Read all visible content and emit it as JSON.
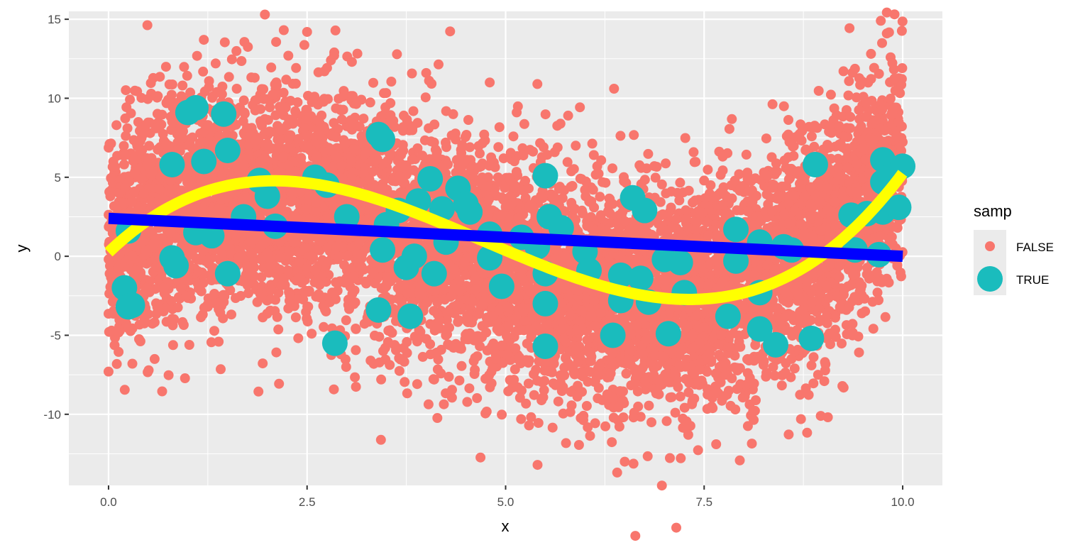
{
  "chart_data": {
    "type": "scatter",
    "xlabel": "x",
    "ylabel": "y",
    "xlim": [
      -0.5,
      10.5
    ],
    "ylim": [
      -14.5,
      15.5
    ],
    "x_ticks": [
      0,
      2.5,
      5,
      7.5,
      10
    ],
    "x_tick_labels": [
      "0.0",
      "2.5",
      "5.0",
      "7.5",
      "10.0"
    ],
    "y_ticks": [
      -10,
      -5,
      0,
      5,
      10,
      15
    ],
    "y_tick_labels": [
      "-10",
      "-5",
      "0",
      "5",
      "10",
      "15"
    ],
    "grid": true,
    "legend": {
      "title": "samp",
      "position": "right",
      "entries": [
        {
          "label": "FALSE",
          "color": "#F8766D"
        },
        {
          "label": "TRUE",
          "color": "#00BFC4"
        }
      ]
    },
    "colors": {
      "false_points": "#F8766D",
      "true_points": "#1ABCBD",
      "linear_fit": "#0000FF",
      "curve_fit": "#FFFF00",
      "panel_background": "#EBEBEB",
      "gridline": "#FFFFFF"
    },
    "series": [
      {
        "name": "FALSE",
        "kind": "points",
        "n_approx": 8000,
        "x_range": [
          0,
          10
        ],
        "mean_curve_coefficients": [
          0.8,
          3.6,
          -1.25,
          0.095
        ],
        "noise_sd": 3.6,
        "examples": [
          [
            0.0,
            -7.3
          ],
          [
            0.1,
            8.3
          ],
          [
            1.2,
            13.7
          ],
          [
            2.5,
            14.2
          ],
          [
            2.8,
            12.4
          ],
          [
            4.0,
            11.6
          ],
          [
            4.8,
            11.0
          ],
          [
            5.4,
            10.9
          ],
          [
            6.5,
            -13.0
          ],
          [
            7.3,
            -11.3
          ],
          [
            9.8,
            14.1
          ],
          [
            9.9,
            9.4
          ],
          [
            0.3,
            -6.8
          ],
          [
            4.1,
            -7.8
          ],
          [
            3.3,
            -6.6
          ]
        ]
      },
      {
        "name": "TRUE",
        "kind": "points",
        "points": [
          [
            0.2,
            -2.0
          ],
          [
            0.25,
            -3.2
          ],
          [
            0.3,
            -3.1
          ],
          [
            0.25,
            1.6
          ],
          [
            0.8,
            5.8
          ],
          [
            0.8,
            -0.1
          ],
          [
            0.85,
            -0.6
          ],
          [
            1.0,
            9.1
          ],
          [
            1.1,
            9.4
          ],
          [
            1.1,
            1.5
          ],
          [
            1.2,
            6.0
          ],
          [
            1.3,
            1.3
          ],
          [
            1.45,
            9.0
          ],
          [
            1.5,
            6.7
          ],
          [
            1.5,
            -1.1
          ],
          [
            1.7,
            2.5
          ],
          [
            1.9,
            4.8
          ],
          [
            2.0,
            3.8
          ],
          [
            2.1,
            1.9
          ],
          [
            2.6,
            5.0
          ],
          [
            2.75,
            4.5
          ],
          [
            2.85,
            -5.5
          ],
          [
            3.0,
            2.5
          ],
          [
            3.4,
            7.7
          ],
          [
            3.45,
            7.4
          ],
          [
            3.45,
            0.4
          ],
          [
            3.5,
            2.0
          ],
          [
            3.4,
            -3.4
          ],
          [
            3.65,
            2.9
          ],
          [
            3.75,
            -0.7
          ],
          [
            3.8,
            -3.8
          ],
          [
            3.85,
            0.0
          ],
          [
            3.9,
            3.5
          ],
          [
            4.05,
            4.9
          ],
          [
            4.1,
            -1.1
          ],
          [
            4.2,
            3.0
          ],
          [
            4.25,
            0.9
          ],
          [
            4.4,
            4.3
          ],
          [
            4.5,
            3.3
          ],
          [
            4.55,
            2.8
          ],
          [
            4.8,
            1.4
          ],
          [
            4.8,
            -0.1
          ],
          [
            4.95,
            -1.9
          ],
          [
            5.2,
            1.2
          ],
          [
            5.4,
            0.6
          ],
          [
            5.5,
            -1.1
          ],
          [
            5.5,
            -3.0
          ],
          [
            5.5,
            -5.7
          ],
          [
            5.5,
            5.1
          ],
          [
            5.55,
            2.5
          ],
          [
            5.7,
            1.8
          ],
          [
            6.0,
            0.3
          ],
          [
            6.05,
            -0.9
          ],
          [
            6.35,
            -5.0
          ],
          [
            6.45,
            -1.2
          ],
          [
            6.45,
            -2.8
          ],
          [
            6.6,
            3.7
          ],
          [
            6.7,
            -1.4
          ],
          [
            6.75,
            2.9
          ],
          [
            6.8,
            -2.9
          ],
          [
            7.0,
            -0.2
          ],
          [
            7.05,
            -4.9
          ],
          [
            7.2,
            -0.4
          ],
          [
            7.25,
            -2.3
          ],
          [
            7.8,
            -3.8
          ],
          [
            7.9,
            1.7
          ],
          [
            7.9,
            -0.3
          ],
          [
            8.2,
            0.9
          ],
          [
            8.2,
            -2.3
          ],
          [
            8.2,
            -4.6
          ],
          [
            8.4,
            -5.6
          ],
          [
            8.5,
            0.6
          ],
          [
            8.6,
            0.4
          ],
          [
            8.85,
            -5.2
          ],
          [
            8.9,
            5.8
          ],
          [
            9.35,
            2.6
          ],
          [
            9.4,
            0.4
          ],
          [
            9.55,
            2.7
          ],
          [
            9.7,
            0.1
          ],
          [
            9.75,
            6.1
          ],
          [
            9.75,
            2.8
          ],
          [
            9.75,
            4.7
          ],
          [
            9.85,
            5.1
          ],
          [
            9.95,
            3.1
          ],
          [
            10.0,
            5.7
          ]
        ]
      },
      {
        "name": "linear fit",
        "kind": "line",
        "points": [
          [
            0,
            2.4
          ],
          [
            10,
            0.0
          ]
        ]
      },
      {
        "name": "curve fit",
        "kind": "line",
        "coefficients": [
          0.25,
          4.8,
          -1.48,
          0.105
        ],
        "x_range": [
          0,
          10
        ]
      }
    ]
  }
}
